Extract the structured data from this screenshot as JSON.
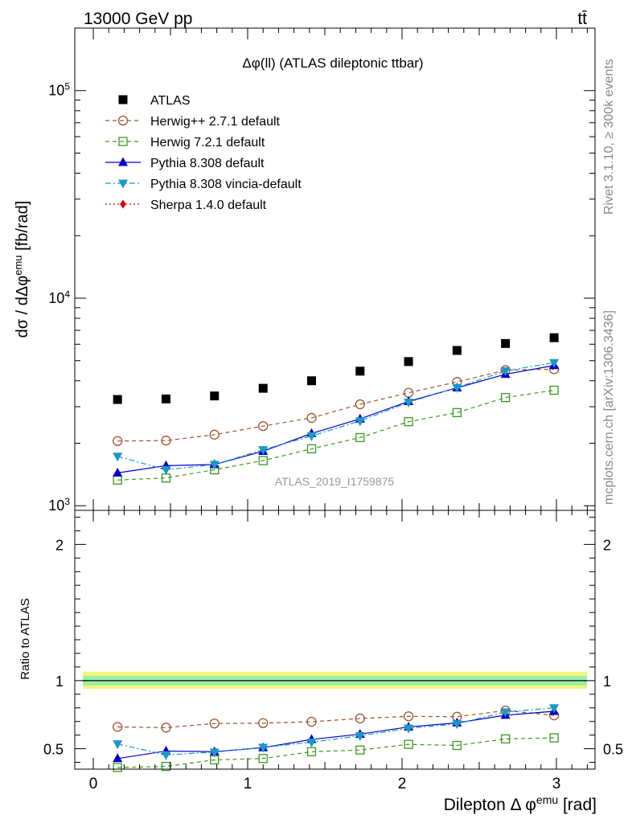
{
  "header": {
    "left_label": "13000 GeV pp",
    "right_label": "tt̄"
  },
  "side_labels": {
    "rivet": "Rivet 3.1.10, ≥ 300k events",
    "mcplots": "mcplots.cern.ch [arXiv:1306.3436]"
  },
  "chart_data": [
    {
      "type": "scatter",
      "panel": "main",
      "title": "Δφ(ll) (ATLAS dileptonic ttbar)",
      "watermark": "ATLAS_2019_I1759875",
      "xlabel": "",
      "ylabel": "dσ / dΔφ^emu [fb/rad]",
      "yscale": "log",
      "xlim": [
        -0.12,
        3.25
      ],
      "ylim": [
        950,
        200000
      ],
      "y_tick_labels": [
        "10^3",
        "10^4",
        "10^5"
      ],
      "legend_position": "top-left",
      "x": [
        0.157,
        0.471,
        0.785,
        1.1,
        1.414,
        1.728,
        2.042,
        2.356,
        2.67,
        2.985
      ],
      "series": [
        {
          "name": "ATLAS",
          "style": "data",
          "color": "#000000",
          "marker": "square-filled",
          "line": "none",
          "values": [
            3250,
            3270,
            3380,
            3680,
            4000,
            4450,
            4950,
            5600,
            6050,
            6450
          ]
        },
        {
          "name": "Herwig++ 2.7.1 default",
          "style": "mc",
          "color": "#a0522d",
          "marker": "circle-open",
          "line": "dashed",
          "values": [
            2050,
            2060,
            2200,
            2420,
            2650,
            3080,
            3500,
            3950,
            4500,
            4550
          ]
        },
        {
          "name": "Herwig 7.2.1 default",
          "style": "mc",
          "color": "#3a9a1a",
          "marker": "square-open",
          "line": "dashed",
          "values": [
            1330,
            1360,
            1490,
            1650,
            1880,
            2130,
            2540,
            2810,
            3320,
            3600
          ]
        },
        {
          "name": "Pythia 8.308 default",
          "style": "mc",
          "color": "#0000cc",
          "marker": "triangle-up-filled",
          "line": "solid",
          "values": [
            1440,
            1560,
            1580,
            1830,
            2230,
            2620,
            3180,
            3700,
            4300,
            4740
          ]
        },
        {
          "name": "Pythia 8.308 vincia-default",
          "style": "mc",
          "color": "#1a99c4",
          "marker": "triangle-down-filled",
          "line": "dashdot",
          "values": [
            1730,
            1490,
            1580,
            1860,
            2170,
            2560,
            3150,
            3710,
            4460,
            4890
          ]
        },
        {
          "name": "Sherpa 1.4.0 default",
          "style": "mc",
          "color": "#dd0000",
          "marker": "diamond-filled",
          "line": "dotted",
          "values": []
        }
      ]
    },
    {
      "type": "line",
      "panel": "ratio",
      "xlabel": "Dilepton Δ φ^emu [rad]",
      "ylabel": "Ratio to ATLAS",
      "xlim": [
        -0.12,
        3.25
      ],
      "ylim": [
        0.35,
        2.25
      ],
      "x_tick_labels": [
        "0",
        "1",
        "2",
        "3"
      ],
      "y_tick_labels": [
        "0.5",
        "1",
        "2"
      ],
      "reference_line": 1.0,
      "uncertainty_band_inner": [
        0.965,
        1.035
      ],
      "uncertainty_band_outer": [
        0.94,
        1.065
      ],
      "x": [
        0.157,
        0.471,
        0.785,
        1.1,
        1.414,
        1.728,
        2.042,
        2.356,
        2.67,
        2.985
      ],
      "series": [
        {
          "name": "Herwig++ 2.7.1 default",
          "color": "#a0522d",
          "marker": "circle-open",
          "line": "dashed",
          "values": [
            0.66,
            0.655,
            0.685,
            0.688,
            0.698,
            0.722,
            0.738,
            0.735,
            0.78,
            0.745
          ]
        },
        {
          "name": "Herwig 7.2.1 default",
          "color": "#3a9a1a",
          "marker": "square-open",
          "line": "dashed",
          "values": [
            0.362,
            0.37,
            0.418,
            0.428,
            0.478,
            0.49,
            0.532,
            0.524,
            0.572,
            0.58
          ]
        },
        {
          "name": "Pythia 8.308 default",
          "color": "#0000cc",
          "marker": "triangle-up-filled",
          "line": "solid",
          "values": [
            0.428,
            0.483,
            0.478,
            0.508,
            0.568,
            0.607,
            0.66,
            0.69,
            0.746,
            0.775
          ]
        },
        {
          "name": "Pythia 8.308 vincia-default",
          "color": "#1a99c4",
          "marker": "triangle-down-filled",
          "line": "dashdot",
          "values": [
            0.535,
            0.455,
            0.475,
            0.51,
            0.548,
            0.595,
            0.65,
            0.683,
            0.77,
            0.8
          ]
        }
      ]
    }
  ]
}
